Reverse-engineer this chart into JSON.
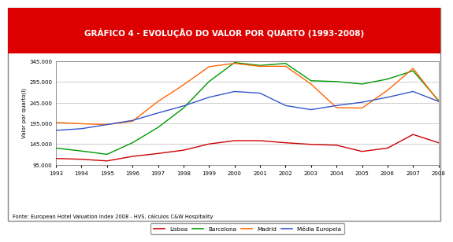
{
  "title": "GRÁFICO 4 - EVOLUÇÃO DO VALOR POR QUARTO (1993-2008)",
  "title_bg_color": "#dd0000",
  "title_text_color": "#ffffff",
  "ylabel": "Valor por quarto(I)",
  "footnote": "Fonte: European Hotel Valuation Index 2008 - HVS, cálculos C&W Hospitality",
  "years": [
    1993,
    1994,
    1995,
    1996,
    1997,
    1998,
    1999,
    2000,
    2001,
    2002,
    2003,
    2004,
    2005,
    2006,
    2007,
    2008
  ],
  "Lisboa": [
    110000,
    108000,
    104000,
    115000,
    122000,
    130000,
    145000,
    153000,
    153000,
    148000,
    144000,
    142000,
    127000,
    135000,
    168000,
    148000
  ],
  "Barcelona": [
    135000,
    128000,
    120000,
    148000,
    185000,
    232000,
    296000,
    342000,
    335000,
    340000,
    298000,
    296000,
    290000,
    302000,
    322000,
    250000
  ],
  "Madrid": [
    197000,
    194000,
    192000,
    200000,
    248000,
    288000,
    332000,
    340000,
    333000,
    333000,
    290000,
    233000,
    232000,
    275000,
    328000,
    248000
  ],
  "Media Europeia": [
    178000,
    182000,
    192000,
    202000,
    220000,
    237000,
    258000,
    272000,
    268000,
    238000,
    228000,
    238000,
    246000,
    258000,
    272000,
    248000
  ],
  "Lisboa_color": "#cc0000",
  "Barcelona_color": "#009900",
  "Madrid_color": "#ff6600",
  "Media_color": "#3355cc",
  "ylim": [
    95000,
    345000
  ],
  "ytick_vals": [
    95000,
    145000,
    195000,
    245000,
    295000,
    345000
  ],
  "ytick_labels": [
    "95.000",
    "145.000",
    "195.000",
    "245.000",
    "295.000",
    "345.000"
  ],
  "outer_border_color": "#888888",
  "grid_color": "#bbbbbb"
}
